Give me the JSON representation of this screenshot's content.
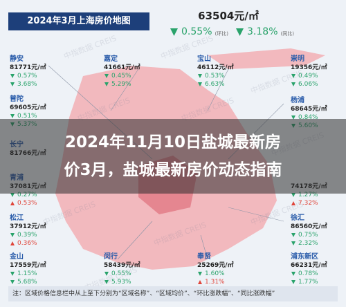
{
  "header": {
    "title": "2024年3月上海房价地图"
  },
  "overall": {
    "price": "63504元/㎡",
    "mom": {
      "dir": "down",
      "text": "0.55%",
      "label": "(环比)"
    },
    "yoy": {
      "dir": "down",
      "text": "3.18%",
      "label": "(同比)"
    }
  },
  "districts": [
    {
      "name": "静安",
      "price": "81771元/㎡",
      "mom": {
        "dir": "down",
        "text": "0.57%"
      },
      "yoy": {
        "dir": "down",
        "text": "3.68%"
      }
    },
    {
      "name": "普陀",
      "price": "69605元/㎡",
      "mom": {
        "dir": "down",
        "text": "0.51%"
      },
      "yoy": {
        "dir": "down",
        "text": "5.37%"
      }
    },
    {
      "name": "长宁",
      "price": "81766元/㎡",
      "mom": null,
      "yoy": null
    },
    {
      "name": "青浦",
      "price": "37081元/㎡",
      "mom": {
        "dir": "down",
        "text": "0.27%"
      },
      "yoy": {
        "dir": "up",
        "text": "0.53%"
      }
    },
    {
      "name": "松江",
      "price": "37912元/㎡",
      "mom": {
        "dir": "down",
        "text": "0.39%"
      },
      "yoy": {
        "dir": "up",
        "text": "0.36%"
      }
    },
    {
      "name": "金山",
      "price": "17559元/㎡",
      "mom": {
        "dir": "down",
        "text": "1.15%"
      },
      "yoy": {
        "dir": "down",
        "text": "5.68%"
      }
    },
    {
      "name": "嘉定",
      "price": "41661元/㎡",
      "mom": {
        "dir": "down",
        "text": "0.45%"
      },
      "yoy": {
        "dir": "down",
        "text": "5.29%"
      }
    },
    {
      "name": "宝山",
      "price": "46112元/㎡",
      "mom": {
        "dir": "down",
        "text": "0.53%"
      },
      "yoy": {
        "dir": "down",
        "text": "6.63%"
      }
    },
    {
      "name": "崇明",
      "price": "19356元/㎡",
      "mom": {
        "dir": "down",
        "text": "0.49%"
      },
      "yoy": {
        "dir": "down",
        "text": "6.06%"
      }
    },
    {
      "name": "杨浦",
      "price": "68645元/㎡",
      "mom": {
        "dir": "down",
        "text": "0.84%"
      },
      "yoy": {
        "dir": "down",
        "text": "5.60%"
      }
    },
    {
      "name": null,
      "price": "74178元/㎡",
      "mom": {
        "dir": "down",
        "text": "1.27%"
      },
      "yoy": {
        "dir": "up",
        "text": "7.32%"
      }
    },
    {
      "name": "徐汇",
      "price": "86560元/㎡",
      "mom": {
        "dir": "down",
        "text": "0.75%"
      },
      "yoy": {
        "dir": "down",
        "text": "2.32%"
      }
    },
    {
      "name": "浦东新区",
      "price": "66231元/㎡",
      "mom": {
        "dir": "down",
        "text": "0.78%"
      },
      "yoy": {
        "dir": "down",
        "text": "1.77%"
      }
    },
    {
      "name": "闵行",
      "price": "58439元/㎡",
      "mom": {
        "dir": "down",
        "text": "0.55%"
      },
      "yoy": {
        "dir": "down",
        "text": "5.93%"
      }
    },
    {
      "name": "奉贤",
      "price": "25269元/㎡",
      "mom": {
        "dir": "down",
        "text": "1.60%"
      },
      "yoy": {
        "dir": "up",
        "text": "1.31%"
      }
    }
  ],
  "watermark": "中指数据 CREIS",
  "overlay": {
    "title_lines": [
      "2024年11月10日盐城最新房",
      "价3月，盐城最新房价动态指南"
    ]
  },
  "footer": {
    "note": "注：区域价格信息栏中从上至下分别为“区域名称”、“区域均价”、“环比涨跌幅”、“同比涨跌幅”"
  }
}
